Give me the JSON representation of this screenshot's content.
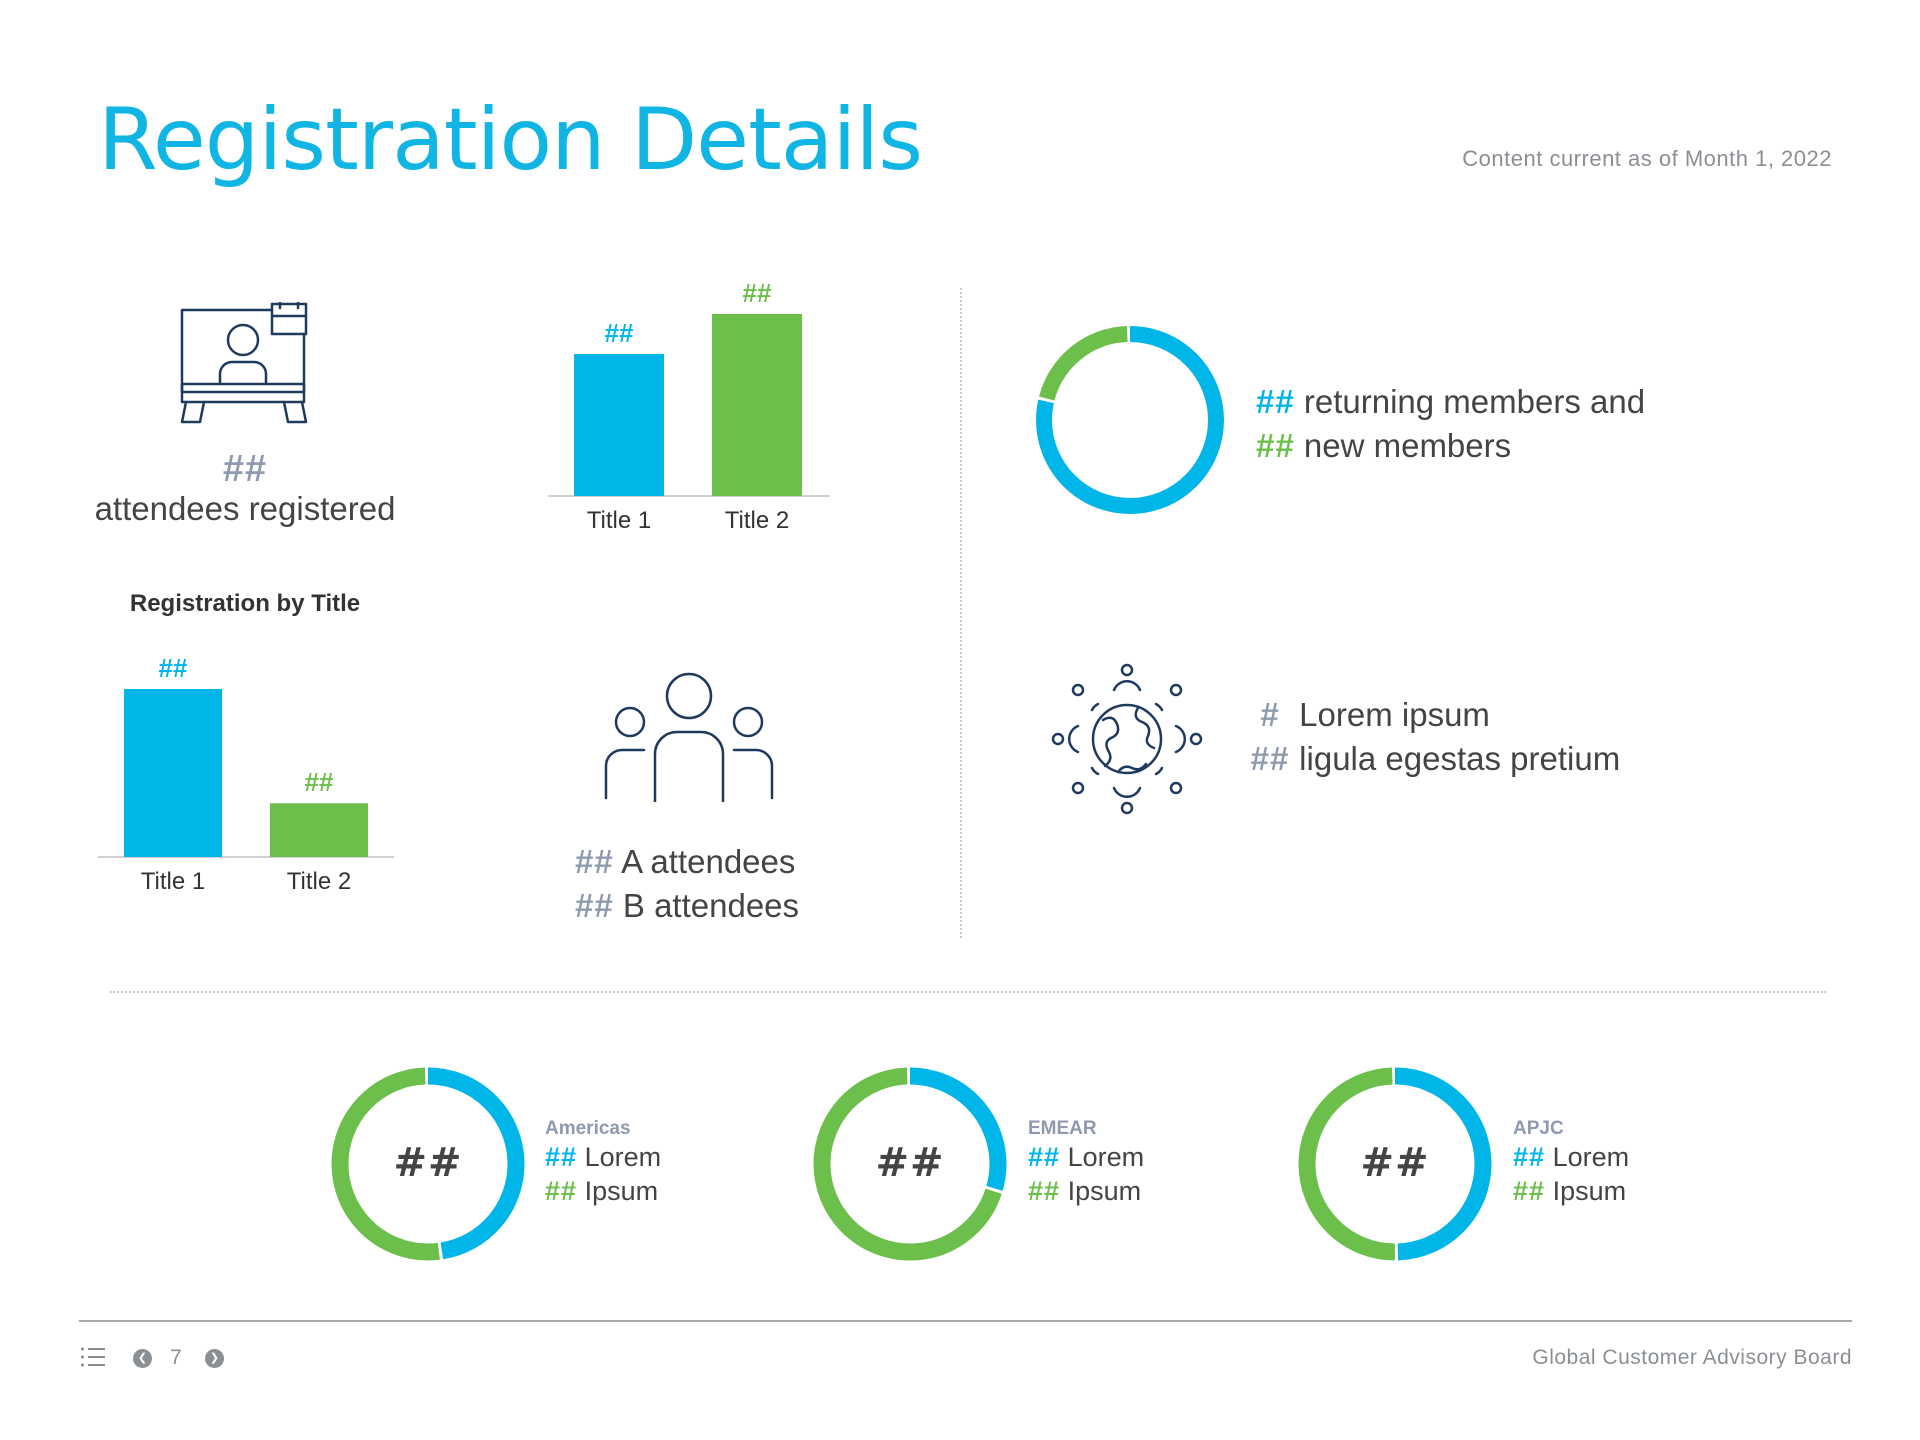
{
  "header": {
    "title": "Registration Details",
    "content_date": "Content current as of Month 1, 2022"
  },
  "colors": {
    "blue": "#00b5e8",
    "green": "#6cbf4b",
    "gray": "#8f9ab0",
    "title_blue": "#10b5e4"
  },
  "attendees": {
    "icon": "video-conference-icon",
    "count": "##",
    "label": "attendees registered"
  },
  "registration_by_title": {
    "heading": "Registration by Title"
  },
  "people": {
    "icon": "group-people-icon",
    "a_count": "##",
    "a_label": "A attendees",
    "b_count": "##",
    "b_label": "B attendees"
  },
  "members": {
    "returning_count": "##",
    "returning_label": "returning members and",
    "new_count": "##",
    "new_label": "new members"
  },
  "globe": {
    "icon": "globe-icon",
    "line1_count": "#",
    "line1_label": "Lorem ipsum",
    "line2_count": "##",
    "line2_label": "ligula egestas pretium"
  },
  "regions": [
    {
      "name": "Americas",
      "center": "##",
      "lorem_count": "##",
      "lorem_label": "Lorem",
      "ipsum_count": "##",
      "ipsum_label": "Ipsum"
    },
    {
      "name": "EMEAR",
      "center": "##",
      "lorem_count": "##",
      "lorem_label": "Lorem",
      "ipsum_count": "##",
      "ipsum_label": "Ipsum"
    },
    {
      "name": "APJC",
      "center": "##",
      "lorem_count": "##",
      "lorem_label": "Lorem",
      "ipsum_count": "##",
      "ipsum_label": "Ipsum"
    }
  ],
  "footer": {
    "page_number": "7",
    "brand": "Global Customer Advisory Board",
    "menu_icon": "list-menu-icon",
    "prev_icon": "chevron-left-icon",
    "next_icon": "chevron-right-icon"
  },
  "chart_data": [
    {
      "type": "bar",
      "categories": [
        "Title 1",
        "Title 2"
      ],
      "values": [
        78,
        100
      ],
      "data_labels": [
        "##",
        "##"
      ],
      "colors": [
        "#00b5e8",
        "#6cbf4b"
      ],
      "title": "",
      "xlabel": "",
      "ylabel": "",
      "ylim": [
        0,
        100
      ]
    },
    {
      "type": "bar",
      "categories": [
        "Title 1",
        "Title 2"
      ],
      "values": [
        100,
        32
      ],
      "data_labels": [
        "##",
        "##"
      ],
      "colors": [
        "#00b5e8",
        "#6cbf4b"
      ],
      "title": "Registration by Title",
      "xlabel": "",
      "ylabel": "",
      "ylim": [
        0,
        100
      ]
    },
    {
      "type": "pie",
      "style": "donut",
      "series": [
        {
          "name": "returning members",
          "value": 79,
          "color": "#00b5e8"
        },
        {
          "name": "new members",
          "value": 21,
          "color": "#6cbf4b"
        }
      ]
    },
    {
      "type": "pie",
      "style": "donut",
      "region": "Americas",
      "series": [
        {
          "name": "Lorem",
          "value": 48,
          "color": "#00b5e8"
        },
        {
          "name": "Ipsum",
          "value": 52,
          "color": "#6cbf4b"
        }
      ]
    },
    {
      "type": "pie",
      "style": "donut",
      "region": "EMEAR",
      "series": [
        {
          "name": "Lorem",
          "value": 30,
          "color": "#00b5e8"
        },
        {
          "name": "Ipsum",
          "value": 70,
          "color": "#6cbf4b"
        }
      ]
    },
    {
      "type": "pie",
      "style": "donut",
      "region": "APJC",
      "series": [
        {
          "name": "Lorem",
          "value": 50,
          "color": "#00b5e8"
        },
        {
          "name": "Ipsum",
          "value": 50,
          "color": "#6cbf4b"
        }
      ]
    }
  ]
}
